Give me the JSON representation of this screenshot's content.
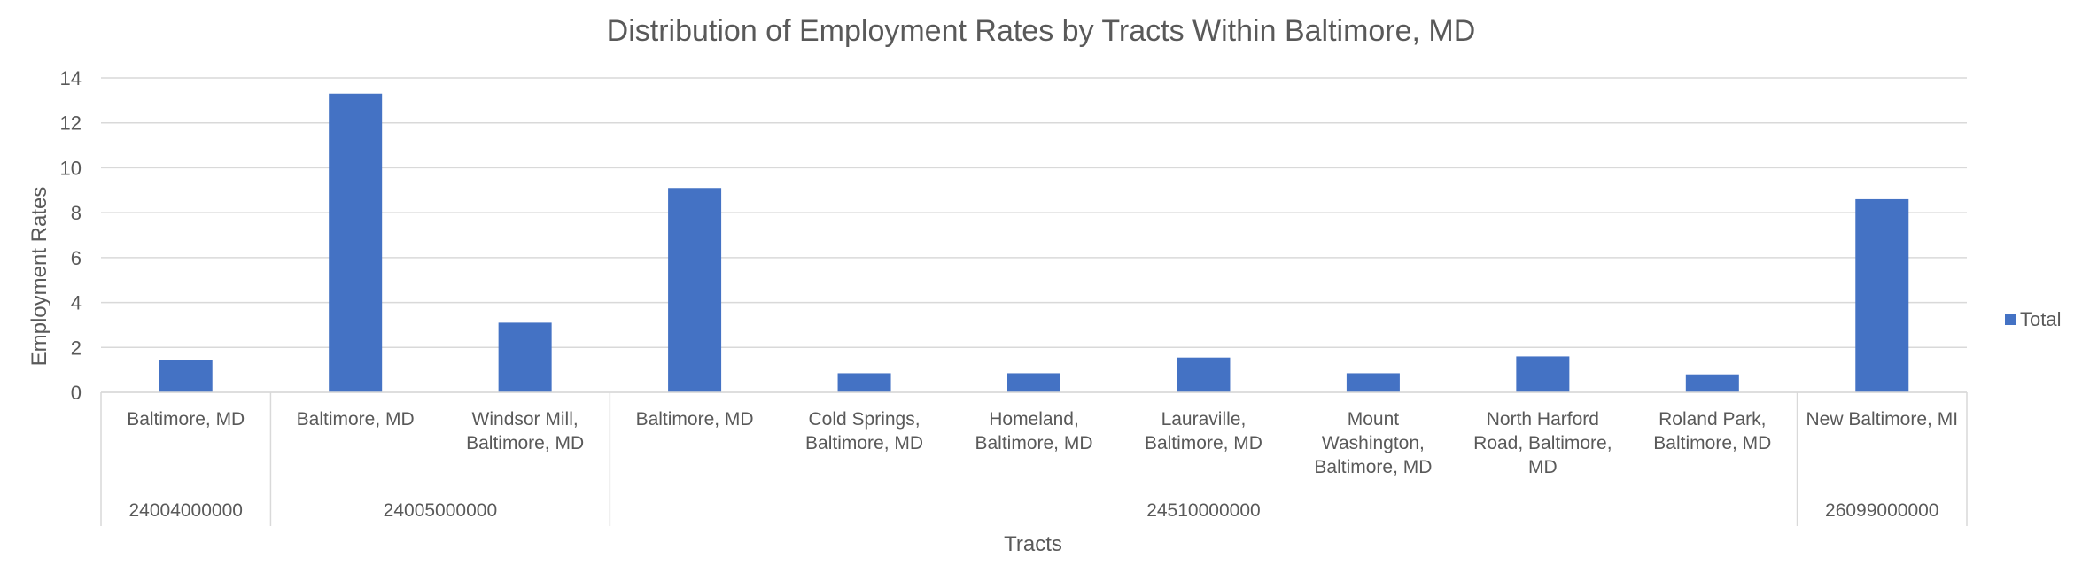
{
  "chart_data": {
    "type": "bar",
    "title": "Distribution of Employment Rates by Tracts Within Baltimore, MD",
    "xlabel": "Tracts",
    "ylabel": "Employment Rates",
    "ylim": [
      0,
      14
    ],
    "yticks": [
      "0",
      "2",
      "4",
      "6",
      "8",
      "10",
      "12",
      "14"
    ],
    "grid": true,
    "legend_position": "right",
    "color": "#4472C4",
    "categories": [
      "Baltimore, MD",
      "Baltimore, MD",
      "Windsor Mill, Baltimore, MD",
      "Baltimore, MD",
      "Cold Springs, Baltimore, MD",
      "Homeland, Baltimore, MD",
      "Lauraville, Baltimore, MD",
      "Mount Washington, Baltimore, MD",
      "North Harford Road, Baltimore, MD",
      "Roland Park, Baltimore, MD",
      "New Baltimore, MI"
    ],
    "category_lines": [
      [
        "Baltimore, MD"
      ],
      [
        "Baltimore, MD"
      ],
      [
        "Windsor Mill,",
        "Baltimore, MD"
      ],
      [
        "Baltimore, MD"
      ],
      [
        "Cold Springs,",
        "Baltimore, MD"
      ],
      [
        "Homeland,",
        "Baltimore, MD"
      ],
      [
        "Lauraville,",
        "Baltimore, MD"
      ],
      [
        "Mount",
        "Washington,",
        "Baltimore, MD"
      ],
      [
        "North Harford",
        "Road, Baltimore,",
        "MD"
      ],
      [
        "Roland Park,",
        "Baltimore, MD"
      ],
      [
        "New Baltimore, MI"
      ]
    ],
    "groups": [
      {
        "label": "24004000000",
        "count": 1
      },
      {
        "label": "24005000000",
        "count": 2
      },
      {
        "label": "24510000000",
        "count": 7
      },
      {
        "label": "26099000000",
        "count": 1
      }
    ],
    "series": [
      {
        "name": "Total",
        "values": [
          1.45,
          13.3,
          3.1,
          9.1,
          0.85,
          0.85,
          1.55,
          0.85,
          1.6,
          0.8,
          8.6
        ]
      }
    ]
  }
}
